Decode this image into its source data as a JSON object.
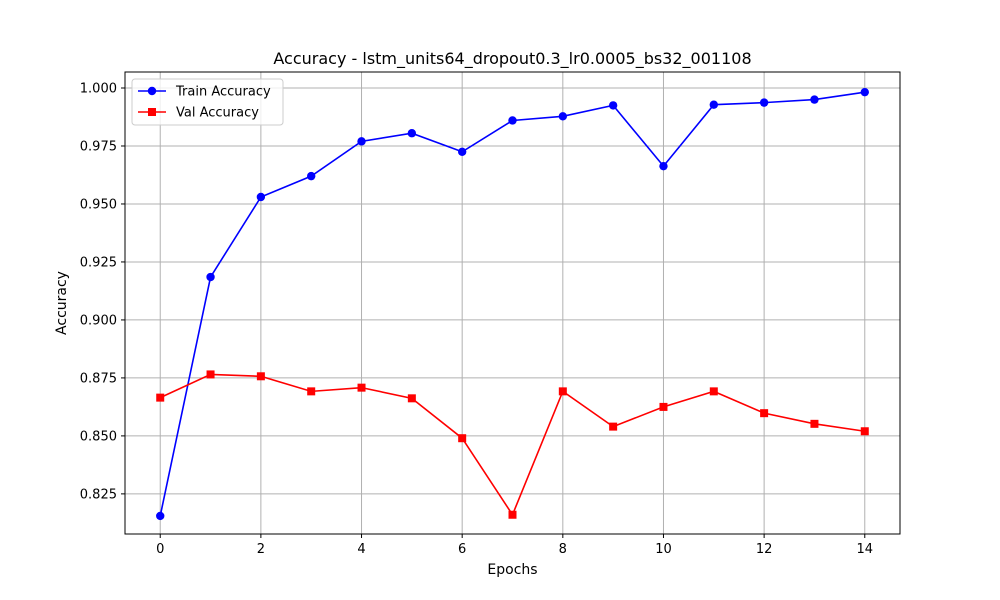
{
  "chart_data": {
    "type": "line",
    "title": "Accuracy - lstm_units64_dropout0.3_lr0.0005_bs32_001108",
    "xlabel": "Epochs",
    "ylabel": "Accuracy",
    "xlim": [
      -0.7,
      14.7
    ],
    "ylim": [
      0.8077,
      1.0069
    ],
    "xticks": [
      0,
      2,
      4,
      6,
      8,
      10,
      12,
      14
    ],
    "yticks": [
      0.825,
      0.85,
      0.875,
      0.9,
      0.925,
      0.95,
      0.975,
      1.0
    ],
    "xtick_labels": [
      "0",
      "2",
      "4",
      "6",
      "8",
      "10",
      "12",
      "14"
    ],
    "ytick_labels": [
      "0.825",
      "0.850",
      "0.875",
      "0.900",
      "0.925",
      "0.950",
      "0.975",
      "1.000"
    ],
    "grid": true,
    "legend_position": "top-left",
    "x": [
      0,
      1,
      2,
      3,
      4,
      5,
      6,
      7,
      8,
      9,
      10,
      11,
      12,
      13,
      14
    ],
    "series": [
      {
        "name": "Train Accuracy",
        "color": "#0000ff",
        "marker": "circle",
        "values": [
          0.8155,
          0.9185,
          0.953,
          0.962,
          0.977,
          0.9805,
          0.9725,
          0.986,
          0.9878,
          0.9925,
          0.9663,
          0.9928,
          0.9937,
          0.995,
          0.9982
        ]
      },
      {
        "name": "Val Accuracy",
        "color": "#ff0000",
        "marker": "square",
        "values": [
          0.8665,
          0.8765,
          0.8757,
          0.8692,
          0.8708,
          0.8662,
          0.849,
          0.816,
          0.8692,
          0.854,
          0.8625,
          0.8692,
          0.8598,
          0.8552,
          0.852
        ]
      }
    ]
  }
}
